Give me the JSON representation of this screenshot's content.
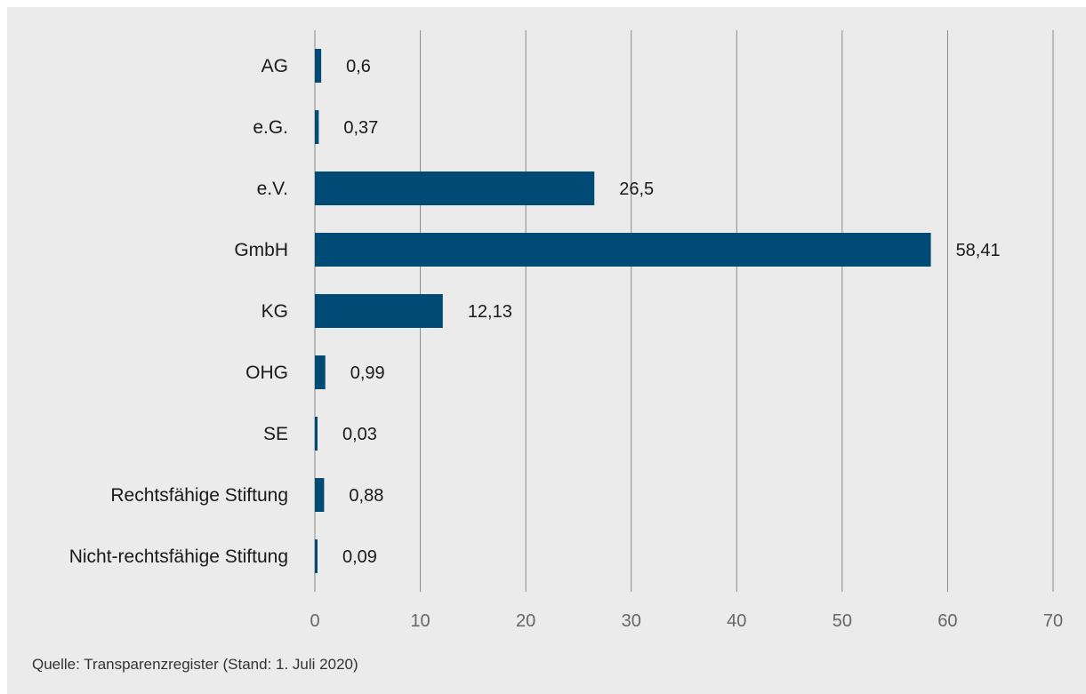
{
  "chart_data": {
    "type": "bar",
    "orientation": "horizontal",
    "categories": [
      "AG",
      "e.G.",
      "e.V.",
      "GmbH",
      "KG",
      "OHG",
      "SE",
      "Rechtsfähige Stiftung",
      "Nicht-rechtsfähige Stiftung"
    ],
    "values": [
      0.6,
      0.37,
      26.5,
      58.41,
      12.13,
      0.99,
      0.03,
      0.88,
      0.09
    ],
    "value_labels": [
      "0,6",
      "0,37",
      "26,5",
      "58,41",
      "12,13",
      "0,99",
      "0,03",
      "0,88",
      "0,09"
    ],
    "xlim": [
      0,
      70
    ],
    "x_ticks": [
      0,
      10,
      20,
      30,
      40,
      50,
      60,
      70
    ],
    "grid": "vertical",
    "bar_color": "#004b76",
    "grid_color": "#8a8a8a"
  },
  "source_text": "Quelle: Transparenzregister (Stand: 1. Juli 2020)"
}
